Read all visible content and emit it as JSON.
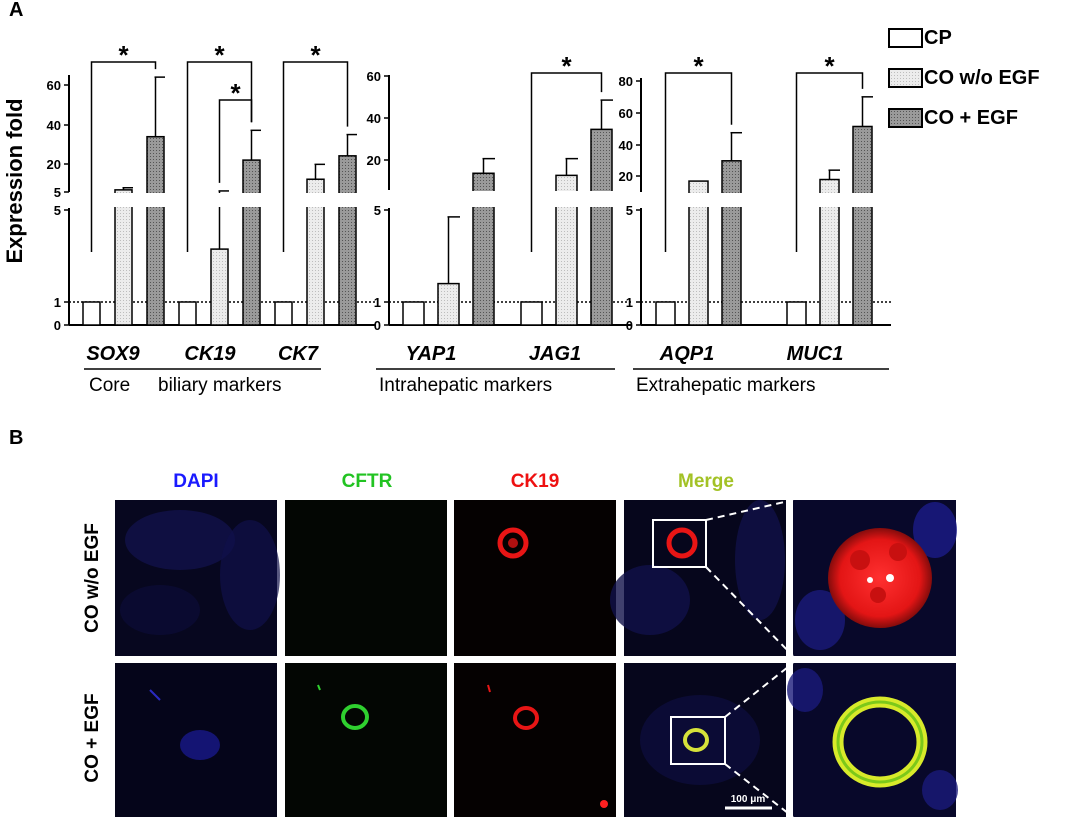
{
  "panel_labels": [
    "A",
    "B"
  ],
  "y_axis_title": "Expression fold",
  "legend": [
    {
      "label": "CP",
      "fill": "#ffffff"
    },
    {
      "label": "CO w/o EGF",
      "fill": "#e8e8e8"
    },
    {
      "label": "CO + EGF",
      "fill": "#8f8f8f"
    }
  ],
  "chart_data": [
    {
      "type": "bar",
      "y_scale": "broken",
      "y_lower_ticks": [
        "0",
        "1",
        "5"
      ],
      "y_upper_ticks": [
        "5",
        "20",
        "40",
        "60"
      ],
      "categories": [
        "SOX9",
        "CK19",
        "CK7"
      ],
      "group_label_parts": [
        "Core",
        "biliary markers"
      ],
      "series": [
        {
          "name": "CP",
          "values": [
            1,
            1,
            1
          ]
        },
        {
          "name": "CO w/o EGF",
          "values": [
            6,
            3.3,
            11
          ]
        },
        {
          "name": "CO + EGF",
          "values": [
            31,
            20,
            22
          ]
        }
      ],
      "error_upper": [
        [
          0,
          0,
          0
        ],
        [
          7,
          5.5,
          18
        ],
        [
          59,
          34,
          32
        ]
      ],
      "significance": [
        "*",
        "*",
        "*",
        "*"
      ]
    },
    {
      "type": "bar",
      "y_scale": "broken",
      "y_lower_ticks": [
        "0",
        "1",
        "5"
      ],
      "y_upper_ticks": [
        "20",
        "40",
        "60"
      ],
      "categories": [
        "YAP1",
        "JAG1"
      ],
      "group_label": "Intrahepatic markers",
      "series": [
        {
          "name": "CP",
          "values": [
            1,
            1
          ]
        },
        {
          "name": "CO w/o EGF",
          "values": [
            1.8,
            12
          ]
        },
        {
          "name": "CO + EGF",
          "values": [
            13,
            34
          ]
        }
      ],
      "error_upper": [
        [
          0,
          0
        ],
        [
          4.7,
          20
        ],
        [
          20,
          48
        ]
      ],
      "significance": [
        "*"
      ]
    },
    {
      "type": "bar",
      "y_scale": "broken",
      "y_lower_ticks": [
        "0",
        "1",
        "5"
      ],
      "y_upper_ticks": [
        "20",
        "40",
        "60",
        "80"
      ],
      "categories": [
        "AQP1",
        "MUC1"
      ],
      "group_label": "Extrahepatic markers",
      "series": [
        {
          "name": "CP",
          "values": [
            1,
            1
          ]
        },
        {
          "name": "CO w/o EGF",
          "values": [
            12,
            13
          ]
        },
        {
          "name": "CO + EGF",
          "values": [
            25,
            47
          ]
        }
      ],
      "error_upper": [
        [
          0,
          0
        ],
        [
          12,
          19
        ],
        [
          43,
          66
        ]
      ],
      "significance": [
        "*",
        "*"
      ]
    }
  ],
  "microscopy": {
    "channels": [
      {
        "label": "DAPI",
        "color": "#1a1aff"
      },
      {
        "label": "CFTR",
        "color": "#22c322"
      },
      {
        "label": "CK19",
        "color": "#ee1111"
      },
      {
        "label": "Merge",
        "color": "#a3c226"
      }
    ],
    "rows": [
      "CO w/o EGF",
      "CO + EGF"
    ],
    "scale_bar": "100 μm"
  }
}
